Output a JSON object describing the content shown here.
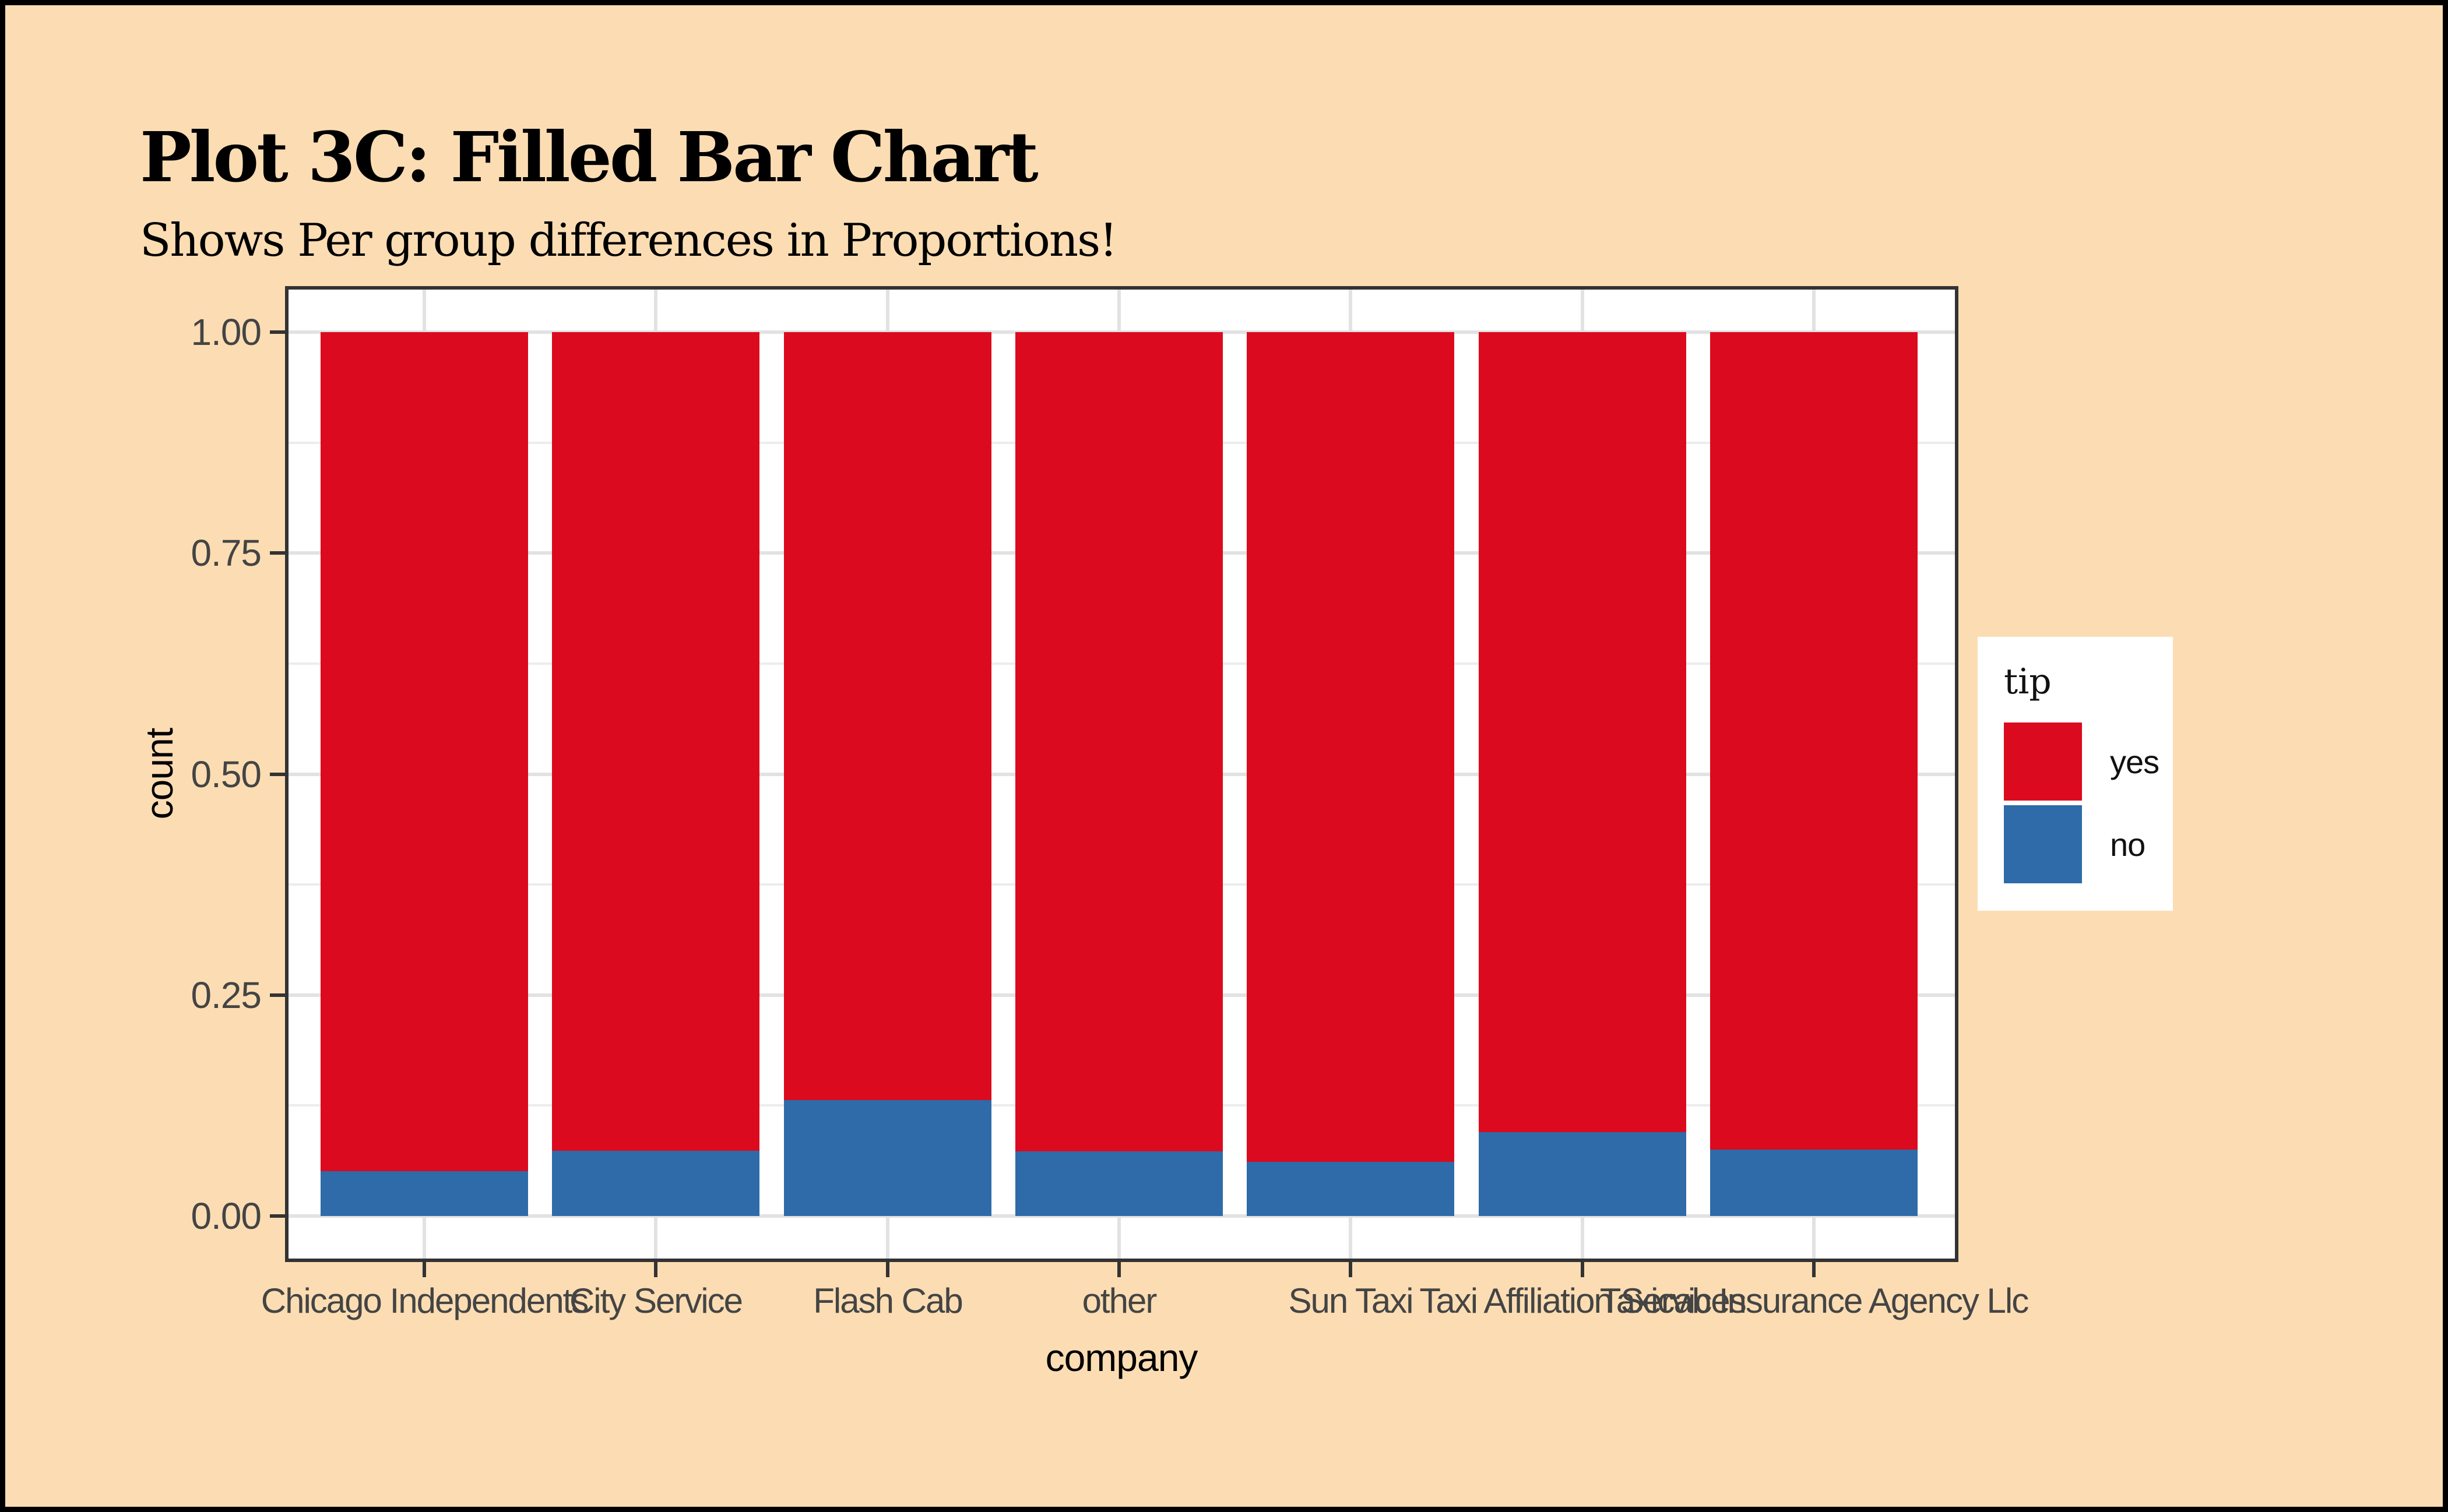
{
  "header": {
    "title": "Plot 3C: Filled Bar Chart",
    "subtitle": "Shows Per group differences in Proportions!"
  },
  "chart_data": {
    "type": "bar",
    "subtype": "stacked-filled-proportion",
    "title": "Plot 3C: Filled Bar Chart",
    "subtitle": "Shows Per group differences in Proportions!",
    "xlabel": "company",
    "ylabel": "count",
    "ylim": [
      0,
      1
    ],
    "grid": "white panel, light-gray major+minor horizontal gridlines, vertical major gridlines at category centers",
    "legend_position": "right",
    "categories": [
      "Chicago Independents",
      "City Service",
      "Flash Cab",
      "other",
      "Sun Taxi",
      "Taxi Affiliation Services",
      "Taxicab Insurance Agency Llc"
    ],
    "series": [
      {
        "name": "yes",
        "color": "#DC0A1E",
        "values": [
          0.949,
          0.926,
          0.869,
          0.927,
          0.939,
          0.905,
          0.925
        ]
      },
      {
        "name": "no",
        "color": "#2E6BA8",
        "values": [
          0.051,
          0.074,
          0.131,
          0.073,
          0.061,
          0.095,
          0.075
        ]
      }
    ],
    "y_ticks": [
      {
        "label": "1.00",
        "value": 1.0
      },
      {
        "label": "0.75",
        "value": 0.75
      },
      {
        "label": "0.50",
        "value": 0.5
      },
      {
        "label": "0.25",
        "value": 0.25
      },
      {
        "label": "0.00",
        "value": 0.0
      }
    ]
  },
  "axes": {
    "x_title": "company",
    "y_title": "count"
  },
  "legend": {
    "title": "tip",
    "entries": [
      {
        "label": "yes",
        "color": "#DC0A1E"
      },
      {
        "label": "no",
        "color": "#2E6BA8"
      }
    ]
  },
  "colors": {
    "background": "#FCDDB3",
    "frame": "#000000",
    "panel_background": "#FFFFFF",
    "panel_border": "#333333",
    "grid_major": "#E2E2E2",
    "grid_minor": "#ECECEC",
    "tick_text": "#444444",
    "bar_yes": "#DC0A1E",
    "bar_no": "#2E6BA8"
  }
}
